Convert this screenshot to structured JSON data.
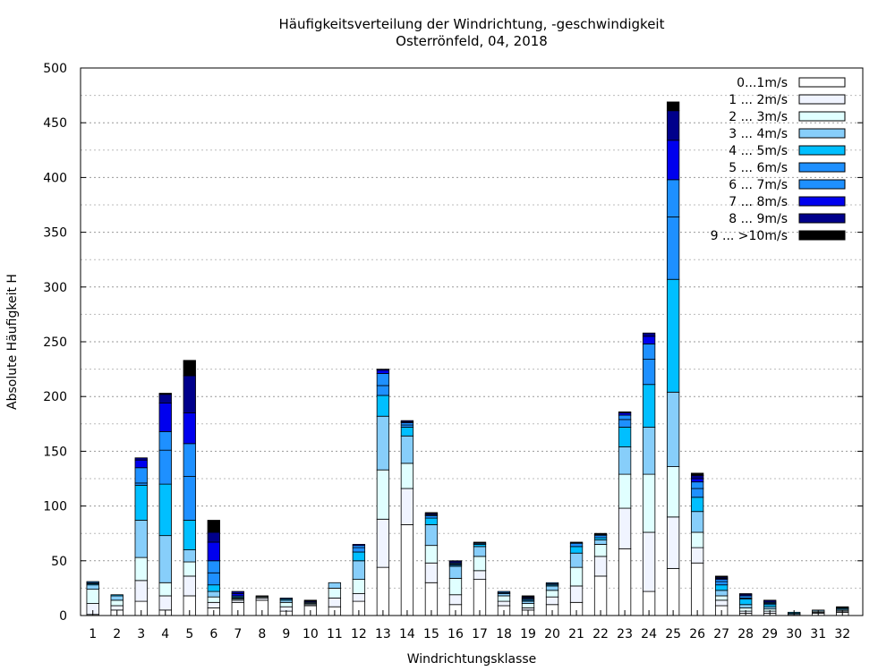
{
  "chart_data": {
    "type": "bar",
    "stacked": true,
    "title": "Häufigkeitsverteilung der Windrichtung, -geschwindigkeit",
    "subtitle": "Osterrönfeld, 04, 2018",
    "xlabel": "Windrichtungsklasse",
    "ylabel": "Absolute Häufigkeit H",
    "ylim": [
      0,
      500
    ],
    "yticks": [
      0,
      50,
      100,
      150,
      200,
      250,
      300,
      350,
      400,
      450,
      500
    ],
    "grid": true,
    "legend_position": "top-right",
    "categories": [
      "1",
      "2",
      "3",
      "4",
      "5",
      "6",
      "7",
      "8",
      "9",
      "10",
      "11",
      "12",
      "13",
      "14",
      "15",
      "16",
      "17",
      "18",
      "19",
      "20",
      "21",
      "22",
      "23",
      "24",
      "25",
      "26",
      "27",
      "28",
      "29",
      "30",
      "31",
      "32"
    ],
    "series": [
      {
        "name": "0...1m/s",
        "color": "#ffffff",
        "values": [
          1,
          5,
          13,
          5,
          18,
          7,
          12,
          14,
          4,
          9,
          8,
          13,
          44,
          83,
          30,
          10,
          33,
          9,
          5,
          10,
          12,
          36,
          61,
          22,
          43,
          48,
          9,
          2,
          2,
          1,
          2,
          3
        ]
      },
      {
        "name": "1 ... 2m/s",
        "color": "#f0f4ff",
        "values": [
          10,
          4,
          19,
          13,
          18,
          5,
          2,
          2,
          4,
          1,
          8,
          7,
          44,
          33,
          18,
          9,
          8,
          4,
          2,
          7,
          15,
          18,
          37,
          54,
          47,
          14,
          5,
          2,
          2,
          0,
          1,
          1
        ]
      },
      {
        "name": "2 ... 3m/s",
        "color": "#e0ffff",
        "values": [
          13,
          5,
          21,
          12,
          13,
          5,
          1,
          1,
          4,
          1,
          9,
          13,
          45,
          23,
          16,
          15,
          13,
          5,
          4,
          6,
          17,
          11,
          31,
          53,
          46,
          14,
          4,
          3,
          2,
          0,
          1,
          1
        ]
      },
      {
        "name": "3 ... 4m/s",
        "color": "#87cefa",
        "values": [
          4,
          4,
          34,
          43,
          11,
          5,
          1,
          0,
          2,
          1,
          5,
          17,
          49,
          25,
          19,
          11,
          9,
          2,
          2,
          4,
          13,
          4,
          25,
          43,
          68,
          19,
          5,
          3,
          2,
          1,
          1,
          1
        ]
      },
      {
        "name": "4 ... 5m/s",
        "color": "#00bfff",
        "values": [
          1,
          1,
          32,
          47,
          27,
          6,
          1,
          0,
          1,
          0,
          0,
          8,
          19,
          8,
          6,
          1,
          2,
          0,
          1,
          1,
          6,
          2,
          18,
          39,
          103,
          13,
          5,
          5,
          2,
          1,
          0,
          1
        ]
      },
      {
        "name": "5 ... 6m/s",
        "color": "#1e90ff",
        "values": [
          1,
          0,
          2,
          31,
          40,
          11,
          0,
          0,
          0,
          0,
          0,
          4,
          9,
          2,
          2,
          1,
          1,
          1,
          1,
          1,
          3,
          2,
          7,
          23,
          57,
          8,
          3,
          1,
          1,
          0,
          0,
          0
        ]
      },
      {
        "name": "6 ... 7m/s",
        "color": "#1e90ff",
        "values": [
          1,
          0,
          14,
          17,
          30,
          11,
          1,
          0,
          1,
          0,
          0,
          2,
          11,
          2,
          1,
          1,
          0,
          1,
          1,
          1,
          0,
          1,
          4,
          14,
          34,
          6,
          2,
          2,
          1,
          0,
          0,
          0
        ]
      },
      {
        "name": "7 ... 8m/s",
        "color": "#0000ee",
        "values": [
          0,
          0,
          7,
          26,
          28,
          17,
          2,
          0,
          0,
          0,
          0,
          1,
          3,
          1,
          1,
          1,
          0,
          0,
          0,
          0,
          0,
          0,
          2,
          7,
          36,
          3,
          1,
          1,
          1,
          0,
          0,
          0
        ]
      },
      {
        "name": "8 ... 9m/s",
        "color": "#00008b",
        "values": [
          0,
          0,
          2,
          8,
          34,
          9,
          2,
          0,
          0,
          1,
          0,
          0,
          1,
          1,
          0,
          1,
          0,
          0,
          1,
          0,
          0,
          0,
          0,
          3,
          27,
          3,
          1,
          1,
          1,
          0,
          0,
          0
        ]
      },
      {
        "name": "9 ... >10m/s",
        "color": "#000000",
        "values": [
          0,
          0,
          0,
          1,
          14,
          11,
          0,
          1,
          0,
          1,
          0,
          0,
          0,
          0,
          1,
          0,
          1,
          0,
          1,
          0,
          1,
          1,
          1,
          0,
          8,
          2,
          1,
          0,
          0,
          0,
          0,
          1
        ]
      }
    ]
  }
}
